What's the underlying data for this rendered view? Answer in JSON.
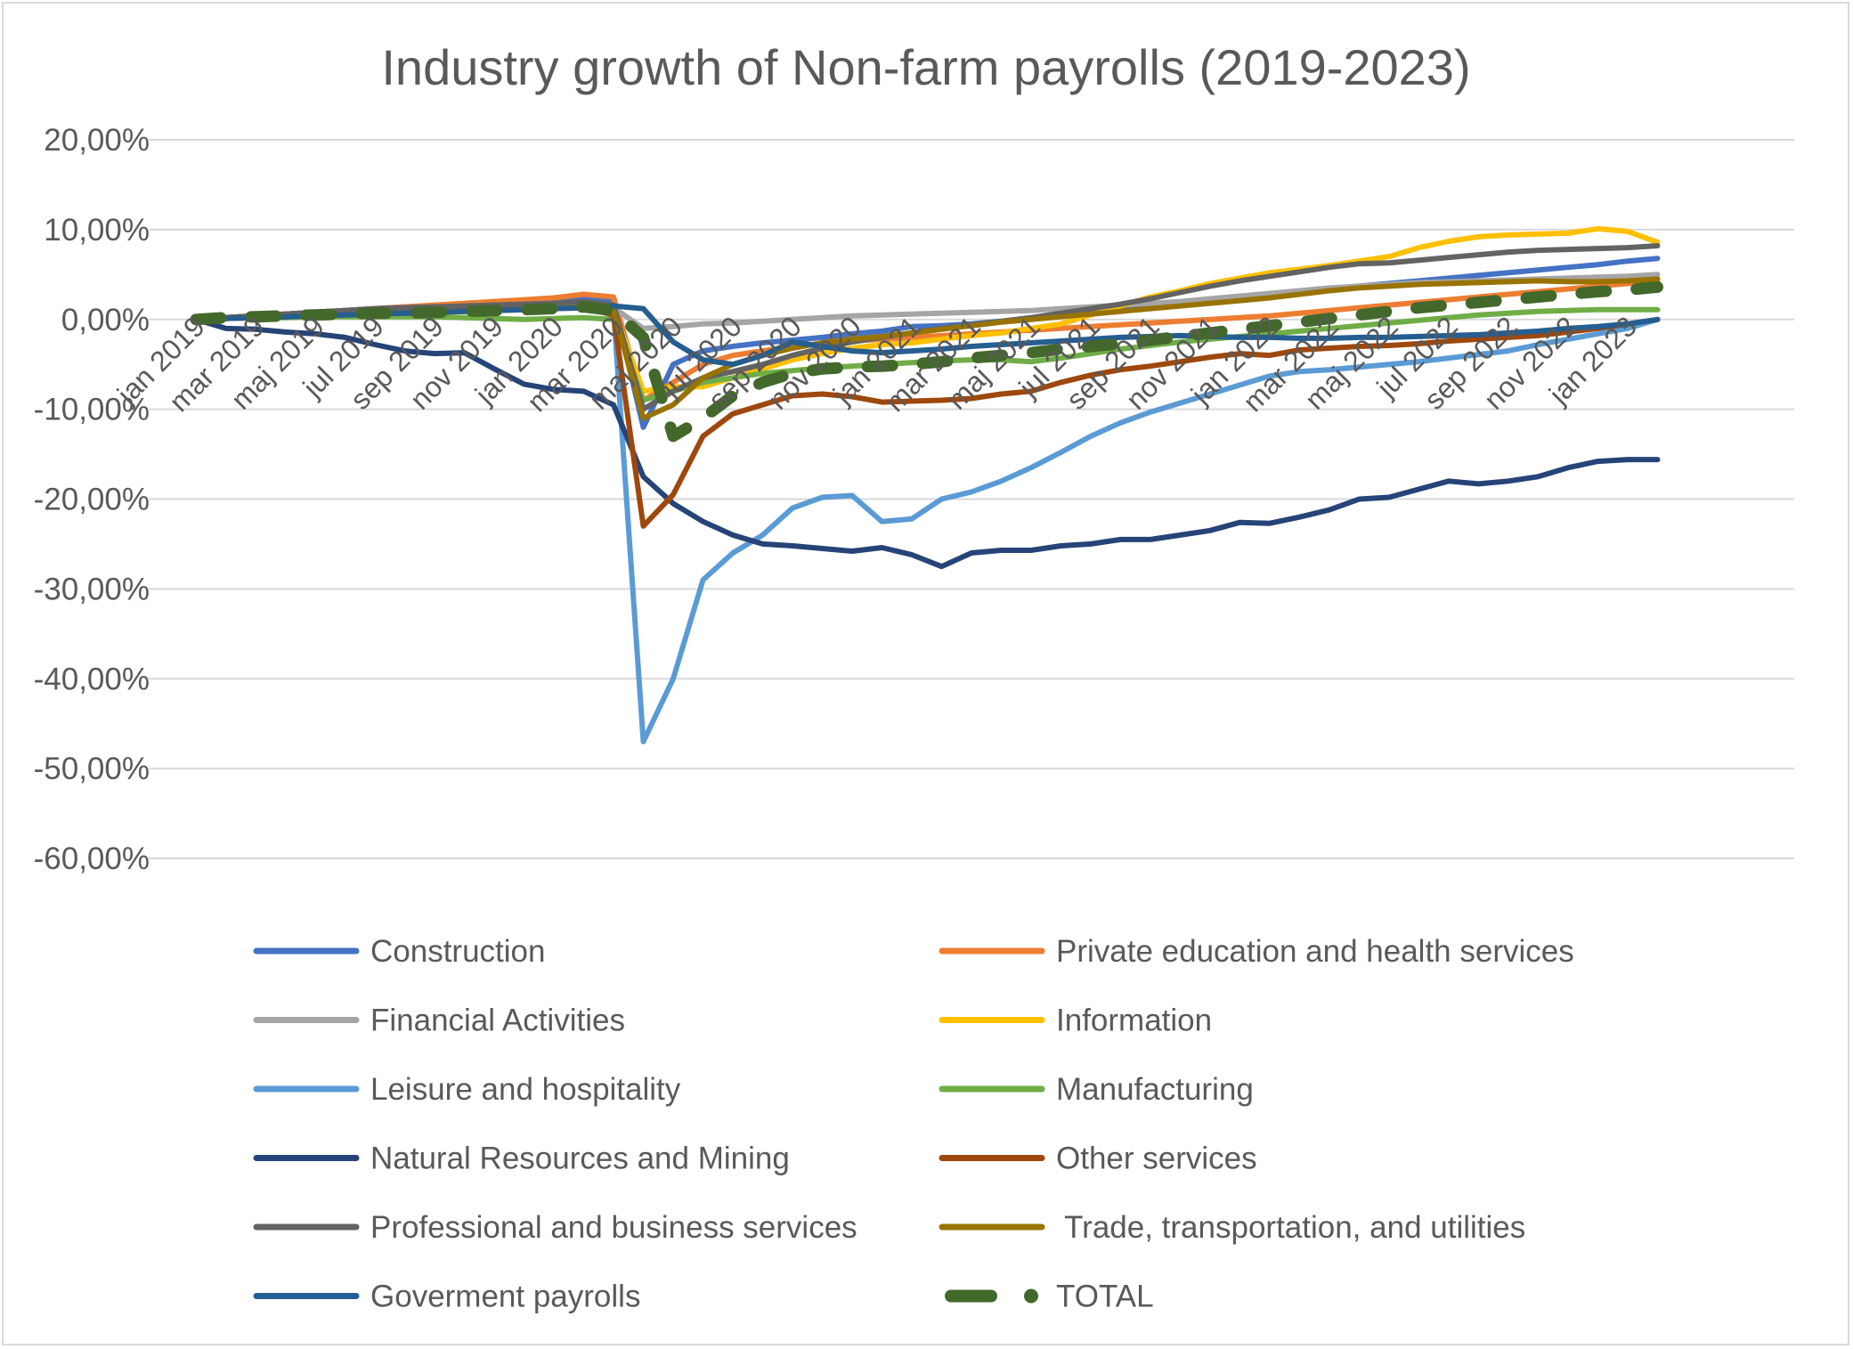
{
  "chart_data": {
    "type": "line",
    "title": "Industry growth of Non-farm payrolls (2019-2023)",
    "y_tick_labels": [
      "20,00%",
      "10,00%",
      "0,00%",
      "-10,00%",
      "-20,00%",
      "-30,00%",
      "-40,00%",
      "-50,00%",
      "-60,00%"
    ],
    "ylim": [
      -60,
      20
    ],
    "y_unit": "%",
    "x_tick_labels": [
      "jan 2019",
      "mar 2019",
      "maj 2019",
      "jul 2019",
      "sep 2019",
      "nov 2019",
      "jan 2020",
      "mar 2020",
      "maj 2020",
      "jul 2020",
      "sep 2020",
      "nov 2020",
      "jan 2021",
      "mar 2021",
      "maj 2021",
      "jul 2021",
      "sep 2021",
      "nov 2021",
      "jan 2022",
      "mar 2022",
      "maj 2022",
      "jul 2022",
      "sep 2022",
      "nov 2022",
      "jan 2023"
    ],
    "x": [
      "jan 2019",
      "feb 2019",
      "mar 2019",
      "apr 2019",
      "maj 2019",
      "jun 2019",
      "jul 2019",
      "aug 2019",
      "sep 2019",
      "okt 2019",
      "nov 2019",
      "dec 2019",
      "jan 2020",
      "feb 2020",
      "mar 2020",
      "apr 2020",
      "maj 2020",
      "jun 2020",
      "jul 2020",
      "aug 2020",
      "sep 2020",
      "okt 2020",
      "nov 2020",
      "dec 2020",
      "jan 2021",
      "feb 2021",
      "mar 2021",
      "apr 2021",
      "maj 2021",
      "jun 2021",
      "jul 2021",
      "aug 2021",
      "sep 2021",
      "okt 2021",
      "nov 2021",
      "dec 2021",
      "jan 2022",
      "feb 2022",
      "mar 2022",
      "apr 2022",
      "maj 2022",
      "jun 2022",
      "jul 2022",
      "aug 2022",
      "sep 2022",
      "okt 2022",
      "nov 2022",
      "dec 2022",
      "jan 2023",
      "feb 2023"
    ],
    "grid": true,
    "legend_position": "bottom",
    "series": [
      {
        "name": "Construction",
        "color": "#4472c4",
        "width": 6,
        "dash": "",
        "values": [
          0,
          0.2,
          0.4,
          0.6,
          0.8,
          1.0,
          1.2,
          1.4,
          1.5,
          1.6,
          1.7,
          1.8,
          2.0,
          2.3,
          2.0,
          -12.0,
          -5.0,
          -3.5,
          -3.0,
          -2.6,
          -2.3,
          -2.0,
          -1.6,
          -1.3,
          -0.8,
          -0.7,
          -0.5,
          -0.2,
          0.1,
          0.4,
          0.7,
          1.0,
          1.4,
          1.8,
          2.2,
          2.5,
          2.8,
          3.1,
          3.4,
          3.7,
          4.0,
          4.3,
          4.6,
          4.9,
          5.2,
          5.5,
          5.8,
          6.1,
          6.5,
          6.8
        ]
      },
      {
        "name": "Private education and health services",
        "color": "#ed7d31",
        "width": 6,
        "dash": "",
        "values": [
          0,
          0.2,
          0.4,
          0.6,
          0.8,
          1.0,
          1.2,
          1.4,
          1.6,
          1.8,
          2.0,
          2.2,
          2.4,
          2.8,
          2.5,
          -9.0,
          -7.0,
          -5.0,
          -4.0,
          -3.5,
          -3.0,
          -2.7,
          -2.4,
          -2.2,
          -2.0,
          -1.8,
          -1.6,
          -1.4,
          -1.2,
          -1.0,
          -0.8,
          -0.6,
          -0.4,
          -0.2,
          0.0,
          0.2,
          0.4,
          0.7,
          1.0,
          1.3,
          1.6,
          1.9,
          2.2,
          2.5,
          2.8,
          3.1,
          3.4,
          3.7,
          4.0,
          4.2
        ]
      },
      {
        "name": "Financial Activities",
        "color": "#a5a5a5",
        "width": 6,
        "dash": "",
        "values": [
          0,
          0.1,
          0.2,
          0.3,
          0.4,
          0.5,
          0.6,
          0.7,
          0.8,
          0.9,
          1.0,
          1.1,
          1.2,
          1.4,
          1.3,
          -1.0,
          -0.8,
          -0.5,
          -0.4,
          -0.2,
          0.0,
          0.2,
          0.4,
          0.5,
          0.6,
          0.7,
          0.8,
          0.9,
          1.0,
          1.2,
          1.4,
          1.6,
          1.8,
          2.0,
          2.3,
          2.6,
          2.9,
          3.2,
          3.5,
          3.7,
          3.9,
          4.1,
          4.2,
          4.3,
          4.4,
          4.5,
          4.6,
          4.7,
          4.8,
          5.0
        ]
      },
      {
        "name": "Information",
        "color": "#ffc000",
        "width": 6,
        "dash": "",
        "values": [
          0,
          0.1,
          0.2,
          0.3,
          0.4,
          0.5,
          0.6,
          0.7,
          0.8,
          0.9,
          1.0,
          1.1,
          1.2,
          1.5,
          1.2,
          -8.0,
          -7.5,
          -7.5,
          -6.5,
          -5.5,
          -4.5,
          -3.8,
          -3.2,
          -2.8,
          -2.6,
          -2.2,
          -1.8,
          -1.5,
          -1.0,
          -0.5,
          0.5,
          1.5,
          2.5,
          3.2,
          4.0,
          4.6,
          5.2,
          5.6,
          6.0,
          6.5,
          7.0,
          8.0,
          8.7,
          9.2,
          9.4,
          9.5,
          9.6,
          10.1,
          9.8,
          8.6
        ]
      },
      {
        "name": "Leisure and hospitality",
        "color": "#5b9bd5",
        "width": 6,
        "dash": "",
        "values": [
          0,
          0.2,
          0.4,
          0.6,
          0.8,
          1.0,
          1.2,
          1.3,
          1.4,
          1.5,
          1.6,
          1.7,
          1.8,
          2.0,
          1.0,
          -47.0,
          -40.0,
          -29.0,
          -26.0,
          -24.0,
          -21.0,
          -19.8,
          -19.6,
          -22.5,
          -22.2,
          -20.0,
          -19.2,
          -18.0,
          -16.5,
          -14.8,
          -13.0,
          -11.5,
          -10.3,
          -9.3,
          -8.3,
          -7.3,
          -6.3,
          -5.8,
          -5.6,
          -5.3,
          -5.0,
          -4.7,
          -4.3,
          -3.9,
          -3.5,
          -2.8,
          -2.2,
          -1.6,
          -1.0,
          0.0
        ]
      },
      {
        "name": "Manufacturing",
        "color": "#70ad47",
        "width": 6,
        "dash": "",
        "values": [
          0,
          0.1,
          0.2,
          0.2,
          0.3,
          0.3,
          0.3,
          0.3,
          0.3,
          0.2,
          0.1,
          0.0,
          0.1,
          0.2,
          0.0,
          -9.0,
          -8.0,
          -7.0,
          -6.5,
          -6.0,
          -5.7,
          -5.4,
          -5.2,
          -5.0,
          -4.8,
          -4.6,
          -4.5,
          -4.5,
          -4.7,
          -4.3,
          -3.8,
          -3.3,
          -2.9,
          -2.5,
          -2.2,
          -1.9,
          -1.6,
          -1.3,
          -1.0,
          -0.7,
          -0.4,
          -0.1,
          0.2,
          0.5,
          0.7,
          0.9,
          1.0,
          1.1,
          1.1,
          1.1
        ]
      },
      {
        "name": "Natural Resources and Mining",
        "color": "#264478",
        "width": 6,
        "dash": "",
        "values": [
          0,
          -1.0,
          -1.1,
          -1.4,
          -1.6,
          -2.0,
          -2.8,
          -3.5,
          -3.8,
          -3.7,
          -5.5,
          -7.2,
          -7.8,
          -8.0,
          -9.5,
          -17.5,
          -20.5,
          -22.5,
          -24.0,
          -25.0,
          -25.2,
          -25.5,
          -25.8,
          -25.4,
          -26.2,
          -27.5,
          -26.0,
          -25.7,
          -25.7,
          -25.2,
          -25.0,
          -24.5,
          -24.5,
          -24.0,
          -23.5,
          -22.6,
          -22.7,
          -22.0,
          -21.2,
          -20.0,
          -19.8,
          -18.9,
          -18.0,
          -18.3,
          -18.0,
          -17.5,
          -16.5,
          -15.8,
          -15.6,
          -15.6
        ]
      },
      {
        "name": "Other services",
        "color": "#9e480e",
        "width": 6,
        "dash": "",
        "values": [
          0,
          0.2,
          0.4,
          0.6,
          0.7,
          0.8,
          0.9,
          1.0,
          1.0,
          1.1,
          1.1,
          1.2,
          1.2,
          1.3,
          0.5,
          -23.0,
          -19.5,
          -13.0,
          -10.5,
          -9.5,
          -8.5,
          -8.3,
          -8.6,
          -9.2,
          -9.1,
          -9.0,
          -8.8,
          -8.3,
          -8.0,
          -7.0,
          -6.2,
          -5.6,
          -5.2,
          -4.7,
          -4.2,
          -3.8,
          -4.0,
          -3.4,
          -3.2,
          -3.0,
          -2.9,
          -2.7,
          -2.4,
          -2.2,
          -2.0,
          -1.8,
          -1.4,
          -1.0,
          -0.5,
          0.0
        ]
      },
      {
        "name": "Professional and business services",
        "color": "#636363",
        "width": 6,
        "dash": "",
        "values": [
          0,
          0.2,
          0.4,
          0.6,
          0.8,
          1.0,
          1.2,
          1.3,
          1.4,
          1.5,
          1.6,
          1.7,
          1.8,
          2.0,
          1.6,
          -10.0,
          -8.0,
          -6.5,
          -5.8,
          -5.0,
          -4.0,
          -3.2,
          -2.5,
          -2.0,
          -1.5,
          -1.0,
          -0.6,
          -0.2,
          0.2,
          0.7,
          1.2,
          1.7,
          2.3,
          3.0,
          3.7,
          4.3,
          4.8,
          5.3,
          5.8,
          6.2,
          6.3,
          6.6,
          6.9,
          7.2,
          7.5,
          7.7,
          7.8,
          7.9,
          8.0,
          8.2
        ]
      },
      {
        "name": " Trade, transportation, and utilities",
        "color": "#997300",
        "width": 6,
        "dash": "",
        "values": [
          0,
          0.1,
          0.2,
          0.3,
          0.4,
          0.5,
          0.6,
          0.7,
          0.8,
          0.9,
          1.0,
          1.1,
          1.2,
          1.4,
          1.0,
          -11.0,
          -9.5,
          -6.5,
          -5.0,
          -4.0,
          -3.2,
          -2.6,
          -2.2,
          -1.9,
          -1.5,
          -1.1,
          -0.7,
          -0.3,
          0.0,
          0.3,
          0.6,
          0.9,
          1.2,
          1.5,
          1.8,
          2.1,
          2.4,
          2.8,
          3.2,
          3.5,
          3.7,
          3.9,
          4.0,
          4.1,
          4.2,
          4.3,
          4.2,
          4.2,
          4.3,
          4.5
        ]
      },
      {
        "name": "Goverment payrolls",
        "color": "#255e91",
        "width": 6,
        "dash": "",
        "values": [
          0,
          0.1,
          0.2,
          0.3,
          0.4,
          0.5,
          0.6,
          0.7,
          0.8,
          0.9,
          1.0,
          1.1,
          1.2,
          1.3,
          1.5,
          1.2,
          -2.5,
          -4.5,
          -5.0,
          -4.0,
          -2.5,
          -3.0,
          -3.5,
          -3.7,
          -3.5,
          -3.3,
          -3.0,
          -2.8,
          -2.6,
          -2.4,
          -2.2,
          -2.0,
          -1.9,
          -1.8,
          -1.9,
          -2.0,
          -2.0,
          -2.1,
          -2.1,
          -2.0,
          -2.0,
          -1.9,
          -1.8,
          -1.7,
          -1.5,
          -1.3,
          -1.0,
          -0.8,
          -0.5,
          0.0
        ]
      },
      {
        "name": "TOTAL",
        "color": "#43682b",
        "width": 13,
        "dash": "28 34",
        "values": [
          0,
          0.2,
          0.3,
          0.4,
          0.5,
          0.6,
          0.7,
          0.7,
          0.8,
          0.9,
          1.0,
          1.1,
          1.2,
          1.4,
          1.0,
          -2.0,
          -13.0,
          -11.0,
          -8.5,
          -7.0,
          -6.0,
          -5.5,
          -5.3,
          -5.2,
          -5.0,
          -4.7,
          -4.3,
          -4.0,
          -3.7,
          -3.3,
          -3.0,
          -2.7,
          -2.3,
          -1.9,
          -1.5,
          -1.1,
          -0.7,
          -0.3,
          0.1,
          0.5,
          0.9,
          1.3,
          1.6,
          1.9,
          2.2,
          2.5,
          2.8,
          3.1,
          3.3,
          3.6
        ]
      }
    ]
  }
}
